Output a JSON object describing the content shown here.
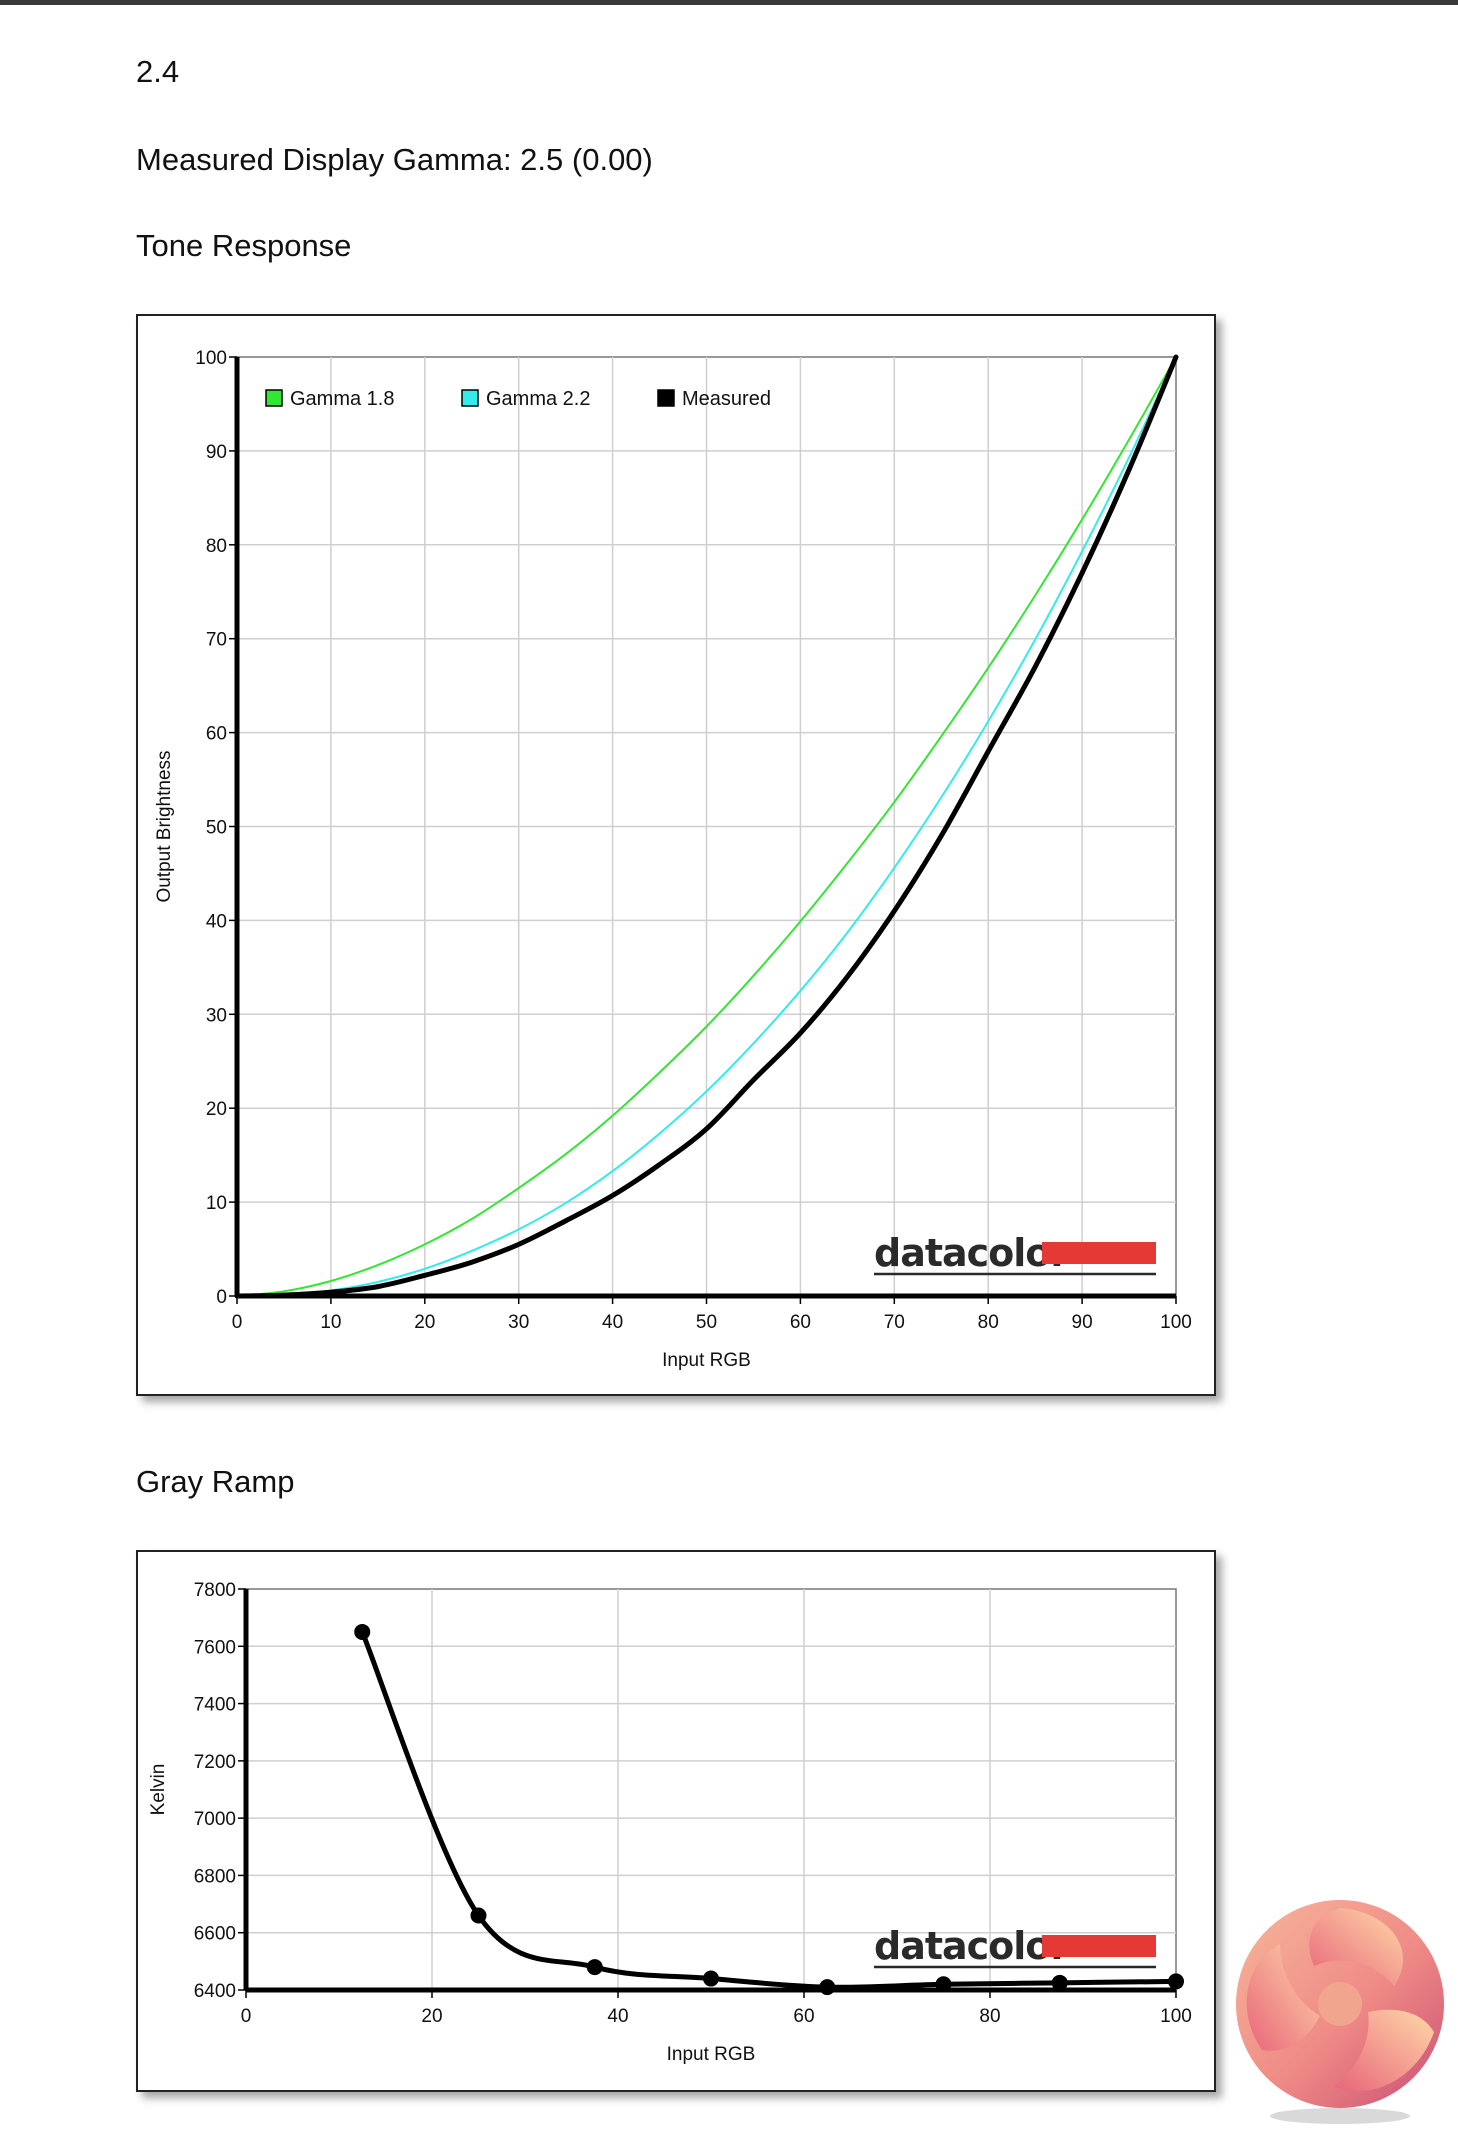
{
  "header": {
    "gamma_target": "2.4",
    "measured_gamma": "Measured Display Gamma: 2.5 (0.00)",
    "tone_section_title": "Tone Response",
    "gray_section_title": "Gray Ramp"
  },
  "brand": {
    "watermark_text": "datacolor",
    "watermark_bar_color": "#e53935"
  },
  "chart_data": [
    {
      "type": "line",
      "title": "",
      "xlabel": "Input RGB",
      "ylabel": "Output Brightness",
      "xlim": [
        0,
        100
      ],
      "ylim": [
        0,
        100
      ],
      "xticks": [
        "0",
        "10",
        "20",
        "30",
        "40",
        "50",
        "60",
        "70",
        "80",
        "90",
        "100"
      ],
      "yticks": [
        "0",
        "10",
        "20",
        "30",
        "40",
        "50",
        "60",
        "70",
        "80",
        "90",
        "100"
      ],
      "grid": true,
      "legend": "top-left",
      "series": [
        {
          "name": "Gamma 1.8",
          "color": "#33e633",
          "x": [
            0,
            5,
            10,
            15,
            20,
            25,
            30,
            35,
            40,
            45,
            50,
            55,
            60,
            65,
            70,
            75,
            80,
            85,
            90,
            95,
            100
          ],
          "values": [
            0,
            0.5,
            1.6,
            3.3,
            5.5,
            8.2,
            11.5,
            15.1,
            19.2,
            23.8,
            28.7,
            34.1,
            39.9,
            46.1,
            52.6,
            59.6,
            66.9,
            74.6,
            82.7,
            91.2,
            100
          ]
        },
        {
          "name": "Gamma 2.2",
          "color": "#33ebeb",
          "x": [
            0,
            5,
            10,
            15,
            20,
            25,
            30,
            35,
            40,
            45,
            50,
            55,
            60,
            65,
            70,
            75,
            80,
            85,
            90,
            95,
            100
          ],
          "values": [
            0,
            0.1,
            0.6,
            1.5,
            2.9,
            4.8,
            7.1,
            9.9,
            13.3,
            17.3,
            21.8,
            26.9,
            32.5,
            38.7,
            45.6,
            53.1,
            61.2,
            69.9,
            79.3,
            89.3,
            100
          ]
        },
        {
          "name": "Measured",
          "color": "#000000",
          "x": [
            0,
            5,
            10,
            15,
            20,
            25,
            30,
            35,
            40,
            45,
            50,
            55,
            60,
            65,
            70,
            75,
            80,
            85,
            90,
            95,
            100
          ],
          "values": [
            0,
            0.1,
            0.4,
            1.0,
            2.2,
            3.6,
            5.5,
            8.0,
            10.7,
            14.0,
            17.8,
            23.0,
            28.0,
            34.0,
            41.0,
            49.0,
            58.0,
            67.0,
            77.0,
            88.0,
            100
          ]
        }
      ]
    },
    {
      "type": "line",
      "title": "",
      "xlabel": "Input RGB",
      "ylabel": "Kelvin",
      "xlim": [
        0,
        100
      ],
      "ylim": [
        6400,
        7800
      ],
      "xticks": [
        "0",
        "20",
        "40",
        "60",
        "80",
        "100"
      ],
      "yticks": [
        "6400",
        "6600",
        "6800",
        "7000",
        "7200",
        "7400",
        "7600",
        "7800"
      ],
      "grid": true,
      "series": [
        {
          "name": "",
          "color": "#000000",
          "x": [
            12.5,
            25,
            37.5,
            50,
            62.5,
            75,
            87.5,
            100
          ],
          "values": [
            7650,
            6660,
            6480,
            6440,
            6410,
            6420,
            6425,
            6430
          ]
        }
      ]
    }
  ]
}
